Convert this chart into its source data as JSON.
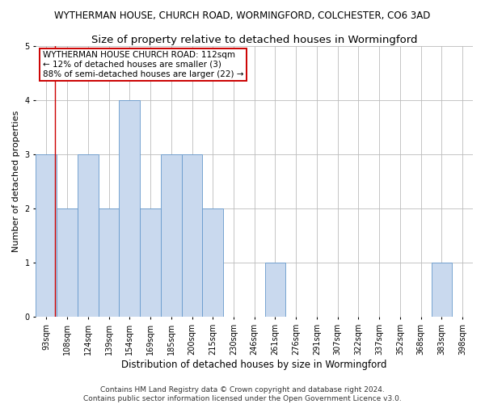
{
  "title": "WYTHERMAN HOUSE, CHURCH ROAD, WORMINGFORD, COLCHESTER, CO6 3AD",
  "subtitle": "Size of property relative to detached houses in Wormingford",
  "xlabel": "Distribution of detached houses by size in Wormingford",
  "ylabel": "Number of detached properties",
  "categories": [
    "93sqm",
    "108sqm",
    "124sqm",
    "139sqm",
    "154sqm",
    "169sqm",
    "185sqm",
    "200sqm",
    "215sqm",
    "230sqm",
    "246sqm",
    "261sqm",
    "276sqm",
    "291sqm",
    "307sqm",
    "322sqm",
    "337sqm",
    "352sqm",
    "368sqm",
    "383sqm",
    "398sqm"
  ],
  "values": [
    3,
    2,
    3,
    2,
    4,
    2,
    3,
    3,
    2,
    0,
    0,
    1,
    0,
    0,
    0,
    0,
    0,
    0,
    0,
    1,
    0
  ],
  "bar_color": "#c9d9ee",
  "bar_edge_color": "#6699cc",
  "vline_color": "#cc0000",
  "vline_x": 0.425,
  "annotation_text": "WYTHERMAN HOUSE CHURCH ROAD: 112sqm\n← 12% of detached houses are smaller (3)\n88% of semi-detached houses are larger (22) →",
  "annotation_box_facecolor": "#ffffff",
  "annotation_box_edgecolor": "#cc0000",
  "ylim": [
    0,
    5
  ],
  "yticks": [
    0,
    1,
    2,
    3,
    4,
    5
  ],
  "footnote": "Contains HM Land Registry data © Crown copyright and database right 2024.\nContains public sector information licensed under the Open Government Licence v3.0.",
  "title_fontsize": 8.5,
  "subtitle_fontsize": 9.5,
  "xlabel_fontsize": 8.5,
  "ylabel_fontsize": 8,
  "tick_fontsize": 7,
  "annotation_fontsize": 7.5,
  "footnote_fontsize": 6.5
}
